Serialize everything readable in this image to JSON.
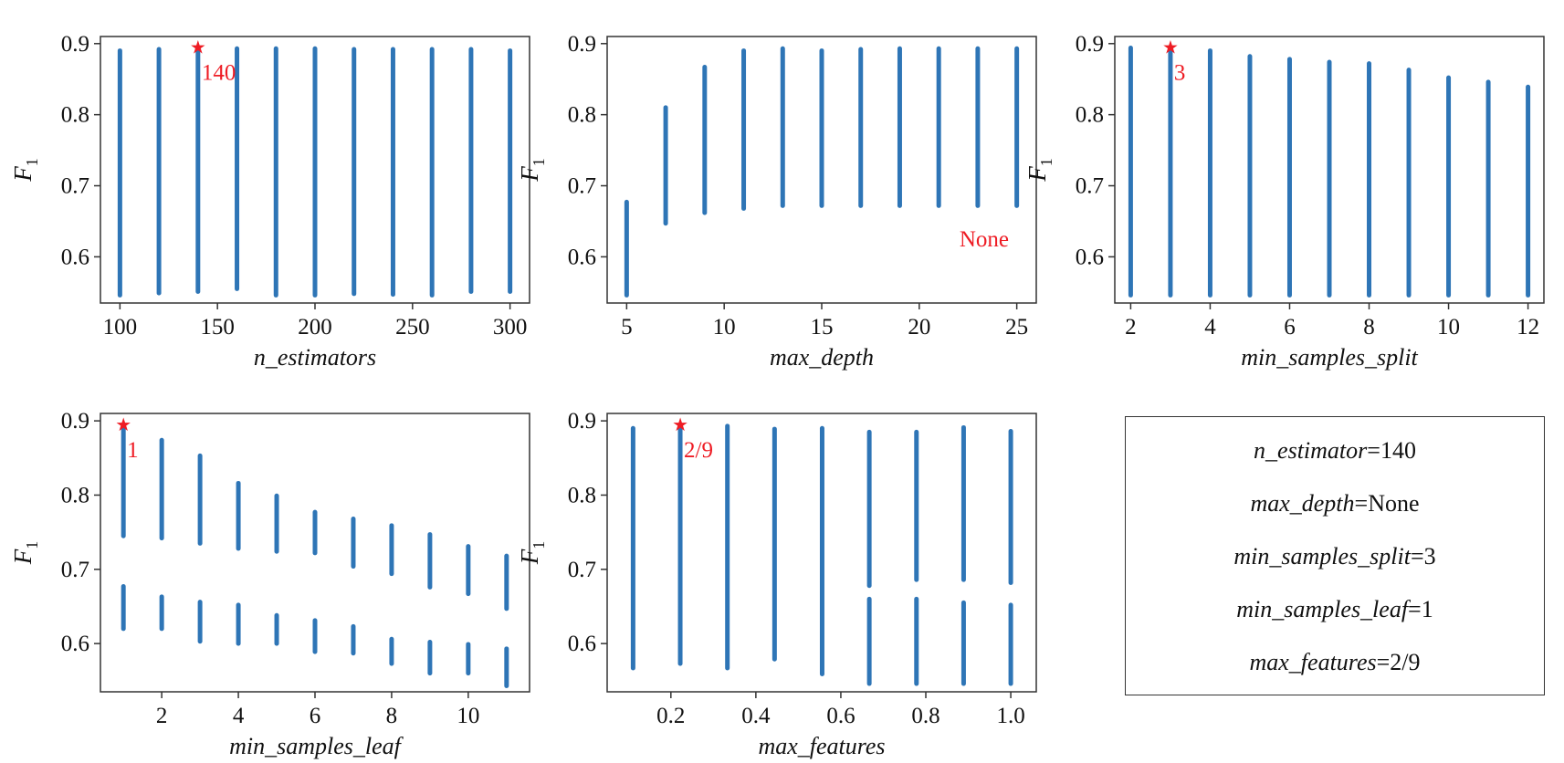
{
  "colors": {
    "series": "#2e75b6",
    "best": "#ee1c24",
    "axis": "#333333",
    "text": "#111111"
  },
  "y_tick_labels": [
    "0.6",
    "0.7",
    "0.8",
    "0.9"
  ],
  "y_label_main": "F",
  "y_label_sub": "1",
  "chart_data": [
    {
      "type": "scatter",
      "xlabel": "n_estimators",
      "ylabel": "F1",
      "xlim": [
        90,
        310
      ],
      "ylim": [
        0.535,
        0.91
      ],
      "xticks": [
        100,
        150,
        200,
        250,
        300
      ],
      "yticks": [
        0.6,
        0.7,
        0.8,
        0.9
      ],
      "grid": false,
      "columns": [
        {
          "x": 100,
          "ymin": 0.546,
          "ymax": 0.89
        },
        {
          "x": 120,
          "ymin": 0.549,
          "ymax": 0.892
        },
        {
          "x": 140,
          "ymin": 0.551,
          "ymax": 0.893
        },
        {
          "x": 160,
          "ymin": 0.555,
          "ymax": 0.893
        },
        {
          "x": 180,
          "ymin": 0.546,
          "ymax": 0.893
        },
        {
          "x": 200,
          "ymin": 0.546,
          "ymax": 0.893
        },
        {
          "x": 220,
          "ymin": 0.548,
          "ymax": 0.892
        },
        {
          "x": 240,
          "ymin": 0.547,
          "ymax": 0.892
        },
        {
          "x": 260,
          "ymin": 0.546,
          "ymax": 0.892
        },
        {
          "x": 280,
          "ymin": 0.551,
          "ymax": 0.892
        },
        {
          "x": 300,
          "ymin": 0.551,
          "ymax": 0.89
        }
      ],
      "best": {
        "x": 140,
        "y": 0.895,
        "label": "140"
      }
    },
    {
      "type": "scatter",
      "xlabel": "max_depth",
      "ylabel": "F1",
      "xlim": [
        4,
        26
      ],
      "ylim": [
        0.535,
        0.91
      ],
      "xticks": [
        5,
        10,
        15,
        20,
        25
      ],
      "yticks": [
        0.6,
        0.7,
        0.8,
        0.9
      ],
      "grid": false,
      "columns": [
        {
          "x": 5,
          "ymin": 0.546,
          "ymax": 0.677
        },
        {
          "x": 7,
          "ymin": 0.647,
          "ymax": 0.81
        },
        {
          "x": 9,
          "ymin": 0.662,
          "ymax": 0.867
        },
        {
          "x": 11,
          "ymin": 0.668,
          "ymax": 0.89
        },
        {
          "x": 13,
          "ymin": 0.672,
          "ymax": 0.893
        },
        {
          "x": 15,
          "ymin": 0.672,
          "ymax": 0.89
        },
        {
          "x": 17,
          "ymin": 0.672,
          "ymax": 0.892
        },
        {
          "x": 19,
          "ymin": 0.672,
          "ymax": 0.893
        },
        {
          "x": 21,
          "ymin": 0.672,
          "ymax": 0.893
        },
        {
          "x": 23,
          "ymin": 0.672,
          "ymax": 0.893
        },
        {
          "x": 25,
          "ymin": 0.672,
          "ymax": 0.893
        }
      ],
      "annotation": "None"
    },
    {
      "type": "scatter",
      "xlabel": "min_samples_split",
      "ylabel": "F1",
      "xlim": [
        1.6,
        12.4
      ],
      "ylim": [
        0.535,
        0.91
      ],
      "xticks": [
        2,
        4,
        6,
        8,
        10,
        12
      ],
      "yticks": [
        0.6,
        0.7,
        0.8,
        0.9
      ],
      "grid": false,
      "columns": [
        {
          "x": 2,
          "ymin": 0.546,
          "ymax": 0.894
        },
        {
          "x": 3,
          "ymin": 0.546,
          "ymax": 0.893
        },
        {
          "x": 4,
          "ymin": 0.546,
          "ymax": 0.89
        },
        {
          "x": 5,
          "ymin": 0.546,
          "ymax": 0.882
        },
        {
          "x": 6,
          "ymin": 0.546,
          "ymax": 0.878
        },
        {
          "x": 7,
          "ymin": 0.546,
          "ymax": 0.874
        },
        {
          "x": 8,
          "ymin": 0.546,
          "ymax": 0.872
        },
        {
          "x": 9,
          "ymin": 0.546,
          "ymax": 0.863
        },
        {
          "x": 10,
          "ymin": 0.546,
          "ymax": 0.852
        },
        {
          "x": 11,
          "ymin": 0.546,
          "ymax": 0.846
        },
        {
          "x": 12,
          "ymin": 0.546,
          "ymax": 0.839
        }
      ],
      "best": {
        "x": 3,
        "y": 0.895,
        "label": "3"
      }
    },
    {
      "type": "scatter",
      "xlabel": "min_samples_leaf",
      "ylabel": "F1",
      "xlim": [
        0.4,
        11.6
      ],
      "ylim": [
        0.535,
        0.91
      ],
      "xticks": [
        2,
        4,
        6,
        8,
        10
      ],
      "yticks": [
        0.6,
        0.7,
        0.8,
        0.9
      ],
      "grid": false,
      "columns": [
        {
          "x": 1,
          "segments": [
            [
              0.62,
              0.677
            ],
            [
              0.745,
              0.893
            ]
          ]
        },
        {
          "x": 2,
          "segments": [
            [
              0.62,
              0.663
            ],
            [
              0.742,
              0.874
            ]
          ]
        },
        {
          "x": 3,
          "segments": [
            [
              0.603,
              0.656
            ],
            [
              0.735,
              0.853
            ]
          ]
        },
        {
          "x": 4,
          "segments": [
            [
              0.6,
              0.652
            ],
            [
              0.728,
              0.816
            ]
          ]
        },
        {
          "x": 5,
          "segments": [
            [
              0.6,
              0.638
            ],
            [
              0.724,
              0.799
            ]
          ]
        },
        {
          "x": 6,
          "segments": [
            [
              0.589,
              0.631
            ],
            [
              0.722,
              0.777
            ]
          ]
        },
        {
          "x": 7,
          "segments": [
            [
              0.587,
              0.623
            ],
            [
              0.704,
              0.768
            ]
          ]
        },
        {
          "x": 8,
          "segments": [
            [
              0.573,
              0.606
            ],
            [
              0.694,
              0.759
            ]
          ]
        },
        {
          "x": 9,
          "segments": [
            [
              0.56,
              0.602
            ],
            [
              0.676,
              0.747
            ]
          ]
        },
        {
          "x": 10,
          "segments": [
            [
              0.56,
              0.599
            ],
            [
              0.667,
              0.731
            ]
          ]
        },
        {
          "x": 11,
          "segments": [
            [
              0.543,
              0.593
            ],
            [
              0.647,
              0.718
            ]
          ]
        }
      ],
      "best": {
        "x": 1,
        "y": 0.895,
        "label": "1"
      }
    },
    {
      "type": "scatter",
      "xlabel": "max_features",
      "ylabel": "F1",
      "xlim": [
        0.05,
        1.06
      ],
      "ylim": [
        0.535,
        0.91
      ],
      "xticks": [
        0.2,
        0.4,
        0.6,
        0.8,
        1.0
      ],
      "xtick_labels": [
        "0.2",
        "0.4",
        "0.6",
        "0.8",
        "1.0"
      ],
      "yticks": [
        0.6,
        0.7,
        0.8,
        0.9
      ],
      "grid": false,
      "columns": [
        {
          "x": 0.111,
          "segments": [
            [
              0.567,
              0.89
            ]
          ]
        },
        {
          "x": 0.222,
          "segments": [
            [
              0.573,
              0.893
            ]
          ]
        },
        {
          "x": 0.333,
          "segments": [
            [
              0.567,
              0.893
            ]
          ]
        },
        {
          "x": 0.444,
          "segments": [
            [
              0.579,
              0.889
            ]
          ]
        },
        {
          "x": 0.556,
          "segments": [
            [
              0.559,
              0.89
            ]
          ]
        },
        {
          "x": 0.667,
          "segments": [
            [
              0.546,
              0.66
            ],
            [
              0.678,
              0.885
            ]
          ]
        },
        {
          "x": 0.778,
          "segments": [
            [
              0.546,
              0.66
            ],
            [
              0.686,
              0.885
            ]
          ]
        },
        {
          "x": 0.889,
          "segments": [
            [
              0.546,
              0.655
            ],
            [
              0.686,
              0.891
            ]
          ]
        },
        {
          "x": 1.0,
          "segments": [
            [
              0.546,
              0.652
            ],
            [
              0.682,
              0.886
            ]
          ]
        }
      ],
      "best": {
        "x": 0.222,
        "y": 0.895,
        "label": "2/9"
      }
    }
  ],
  "best_params": [
    {
      "name": "n_estimator",
      "value": "=140"
    },
    {
      "name": "max_depth",
      "value": "=None"
    },
    {
      "name": "min_samples_split",
      "value": "=3"
    },
    {
      "name": "min_samples_leaf",
      "value": "=1"
    },
    {
      "name": "max_features",
      "value": "=2/9"
    }
  ]
}
